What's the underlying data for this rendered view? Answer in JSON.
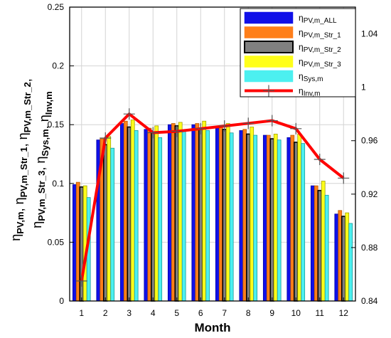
{
  "chart_data": {
    "type": "bar",
    "xlabel": "Month",
    "ylabel_lines": [
      {
        "segments": [
          {
            "t": "η",
            "s": false
          },
          {
            "t": "PV,m_Str_3",
            "s": true
          },
          {
            "t": ", η",
            "s": false
          },
          {
            "t": "Sys,m",
            "s": true
          },
          {
            "t": ", η",
            "s": false
          },
          {
            "t": "Inv,m",
            "s": true
          }
        ]
      },
      {
        "segments": [
          {
            "t": "η",
            "s": false
          },
          {
            "t": "PV,m",
            "s": true
          },
          {
            "t": ", η",
            "s": false
          },
          {
            "t": "PV,m_Str_1",
            "s": true
          },
          {
            "t": ", η",
            "s": false
          },
          {
            "t": "PV,m_Str_2",
            "s": true
          },
          {
            "t": ",",
            "s": false
          }
        ]
      }
    ],
    "categories": [
      "1",
      "2",
      "3",
      "4",
      "5",
      "6",
      "7",
      "8",
      "9",
      "10",
      "11",
      "12"
    ],
    "ylim": [
      0,
      0.25
    ],
    "yticks": [
      "0",
      "0.05",
      "0.1",
      "0.15",
      "0.2",
      "0.25"
    ],
    "y2lim": [
      0.84,
      1.06
    ],
    "y2ticks": [
      "0.84",
      "0.88",
      "0.92",
      "0.96",
      "1",
      "1.04"
    ],
    "grid": true,
    "legend_position": "top-right",
    "series": [
      {
        "name": "ηPV,m_ALL",
        "lg": "η",
        "ls": "PV,m_ALL",
        "color": "#1010e8",
        "outline": "#0000aa",
        "values": [
          0.099,
          0.137,
          0.151,
          0.146,
          0.15,
          0.15,
          0.148,
          0.145,
          0.141,
          0.139,
          0.098,
          0.074
        ]
      },
      {
        "name": "ηPV,m_Str_1",
        "lg": "η",
        "ls": "PV,m_Str_1",
        "color": "#ff7f1a",
        "outline": "#b85a00",
        "values": [
          0.101,
          0.138,
          0.153,
          0.147,
          0.151,
          0.151,
          0.148,
          0.146,
          0.141,
          0.141,
          0.098,
          0.077
        ]
      },
      {
        "name": "ηPV,m_Str_2",
        "lg": "η",
        "ls": "PV,m_Str_2",
        "color": "#808080",
        "outline": "#000000",
        "values": [
          0.097,
          0.133,
          0.148,
          0.143,
          0.149,
          0.147,
          0.146,
          0.142,
          0.138,
          0.135,
          0.094,
          0.072
        ]
      },
      {
        "name": "ηPV,m_Str_3",
        "lg": "η",
        "ls": "PV,m_Str_3",
        "color": "#ffff1a",
        "outline": "#a0a000",
        "values": [
          0.098,
          0.14,
          0.154,
          0.149,
          0.152,
          0.153,
          0.151,
          0.148,
          0.142,
          0.142,
          0.102,
          0.075
        ]
      },
      {
        "name": "ηSys,m",
        "lg": "η",
        "ls": "Sys,m",
        "color": "#4cf0f0",
        "outline": "#1a9a9a",
        "values": [
          0.088,
          0.13,
          0.145,
          0.139,
          0.145,
          0.145,
          0.143,
          0.141,
          0.137,
          0.134,
          0.09,
          0.066
        ]
      },
      {
        "name": "ηInv,m",
        "lg": "η",
        "ls": "Inv,m",
        "color": "#ff0000",
        "axis": "right",
        "type": "line",
        "marker": "plus",
        "values": [
          0.855,
          0.962,
          0.98,
          0.966,
          0.967,
          0.969,
          0.971,
          0.973,
          0.975,
          0.969,
          0.946,
          0.932
        ]
      }
    ]
  }
}
